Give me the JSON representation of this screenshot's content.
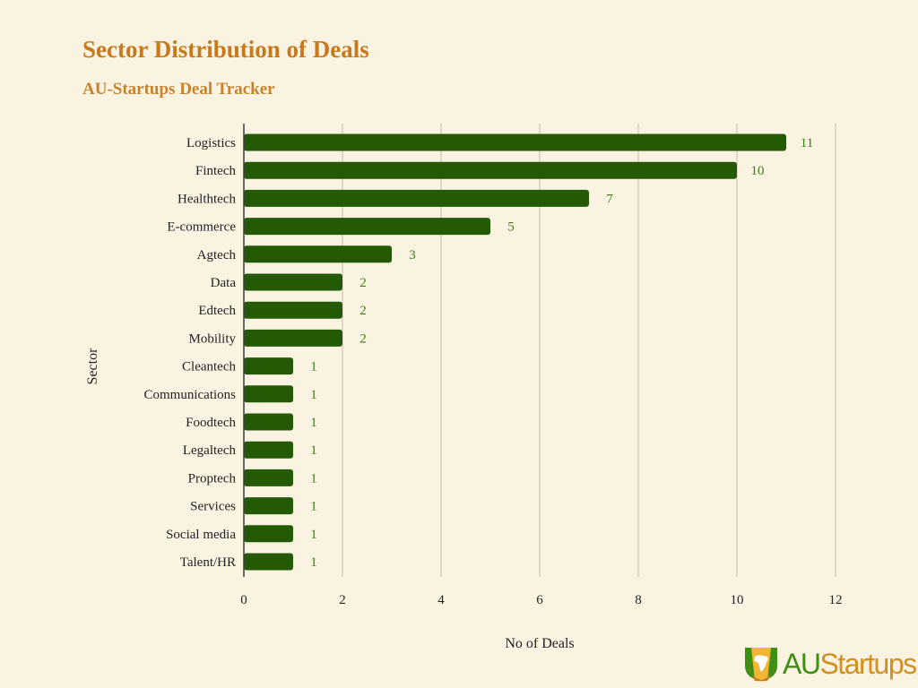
{
  "chart_data": {
    "type": "bar",
    "orientation": "horizontal",
    "title": "Sector Distribution of Deals",
    "subtitle": "AU-Startups Deal Tracker",
    "xlabel": "No of Deals",
    "ylabel": "Sector",
    "xlim": [
      0,
      12
    ],
    "xticks": [
      "0",
      "2",
      "4",
      "6",
      "8",
      "10",
      "12"
    ],
    "grid": true,
    "categories": [
      "Logistics",
      "Fintech",
      "Healthtech",
      "E-commerce",
      "Agtech",
      "Data",
      "Edtech",
      "Mobility",
      "Cleantech",
      "Communications",
      "Foodtech",
      "Legaltech",
      "Proptech",
      "Services",
      "Social media",
      "Talent/HR"
    ],
    "values": [
      11,
      10,
      7,
      5,
      3,
      2,
      2,
      2,
      1,
      1,
      1,
      1,
      1,
      1,
      1,
      1
    ],
    "bar_color": "#245a05",
    "label_color": "#3f7a1a"
  },
  "logo": {
    "text_au": "AU",
    "text_startups": "Startups"
  }
}
